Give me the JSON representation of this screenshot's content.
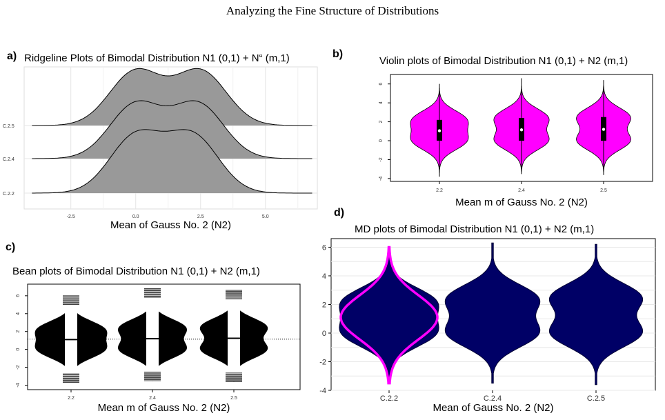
{
  "page_title": "Analyzing the Fine Structure of Distributions",
  "chart_data": [
    {
      "panel": "a)",
      "type": "area",
      "title": "Ridgeline Plots of Bimodal Distribution N1 (0,1) + N“ (m,1)",
      "xlabel": "Mean of Gauss No. 2 (N2)",
      "ylabel": "",
      "x_ticks": [
        -2.5,
        0.0,
        2.5,
        5.0
      ],
      "xlim": [
        -4.3,
        7.0
      ],
      "categories": [
        "C.2.2",
        "C.2.4",
        "C.2.5"
      ],
      "series": [
        {
          "name": "C.2.2",
          "means": [
            0,
            2.2
          ],
          "x": [
            -4,
            -3,
            -2,
            -1,
            0,
            1,
            2,
            3,
            4,
            5,
            6,
            6.8
          ],
          "density": [
            0.0,
            0.01,
            0.06,
            0.3,
            0.78,
            0.96,
            0.93,
            0.62,
            0.24,
            0.04,
            0.005,
            0.0
          ]
        },
        {
          "name": "C.2.4",
          "means": [
            0,
            2.4
          ],
          "x": [
            -4,
            -3,
            -2,
            -1,
            0,
            1,
            2,
            3,
            4,
            5,
            6,
            6.8
          ],
          "density": [
            0.0,
            0.01,
            0.06,
            0.3,
            0.77,
            0.9,
            0.92,
            0.66,
            0.27,
            0.05,
            0.005,
            0.0
          ]
        },
        {
          "name": "C.2.5",
          "means": [
            0,
            2.5
          ],
          "x": [
            -4,
            -3,
            -2,
            -1,
            0,
            1,
            2,
            3,
            4,
            5,
            6,
            6.8
          ],
          "density": [
            0.0,
            0.01,
            0.06,
            0.3,
            0.79,
            0.88,
            0.9,
            0.72,
            0.3,
            0.05,
            0.005,
            0.0
          ]
        }
      ],
      "fill_color": "#999999",
      "grid": true
    },
    {
      "panel": "b)",
      "type": "violin",
      "title": "Violin plots of Bimodal Distribution N1 (0,1) + N2 (m,1)",
      "xlabel": "Mean m of Gauss No. 2 (N2)",
      "ylabel": "",
      "categories": [
        "2.2",
        "2.4",
        "2.5"
      ],
      "y_ticks": [
        -4,
        -2,
        0,
        2,
        4,
        6
      ],
      "ylim": [
        -4.3,
        7.0
      ],
      "ranges": [
        [
          -3.8,
          6.0
        ],
        [
          -3.5,
          6.6
        ],
        [
          -3.6,
          6.4
        ]
      ],
      "medians": [
        1.05,
        1.15,
        1.2
      ],
      "iqr": [
        [
          0.0,
          2.2
        ],
        [
          0.0,
          2.4
        ],
        [
          0.0,
          2.5
        ]
      ],
      "fill_color": "#ff00ff",
      "grid": false
    },
    {
      "panel": "c)",
      "type": "bean",
      "title": "Bean plots of Bimodal Distribution N1 (0,1) + N2 (m,1)",
      "xlabel": "Mean m of Gauss No. 2 (N2)",
      "ylabel": "",
      "categories": [
        "2.2",
        "2.4",
        "2.5"
      ],
      "y_ticks": [
        -4,
        -2,
        0,
        2,
        4,
        6
      ],
      "ylim": [
        -4.5,
        7.3
      ],
      "ranges": [
        [
          -3.7,
          6.0
        ],
        [
          -3.5,
          6.8
        ],
        [
          -3.6,
          6.6
        ]
      ],
      "means": [
        1.1,
        1.2,
        1.25
      ],
      "fill_color": "#000000",
      "grid": false
    },
    {
      "panel": "d)",
      "type": "violin",
      "title": "MD plots of Bimodal Distribution N1 (0,1) + N2 (m,1)",
      "xlabel": "Mean of Gauss No. 2 (N2)",
      "ylabel": "",
      "categories": [
        "C.2.2",
        "C.2.4",
        "C.2.5"
      ],
      "y_ticks": [
        -4,
        -2,
        0,
        2,
        4,
        6
      ],
      "ylim": [
        -4,
        6.6
      ],
      "ranges": [
        [
          -3.5,
          5.8
        ],
        [
          -3.5,
          6.3
        ],
        [
          -3.6,
          6.2
        ]
      ],
      "fill_color": "#000066",
      "overlay_color": "#ff00ff",
      "grid": true
    }
  ]
}
